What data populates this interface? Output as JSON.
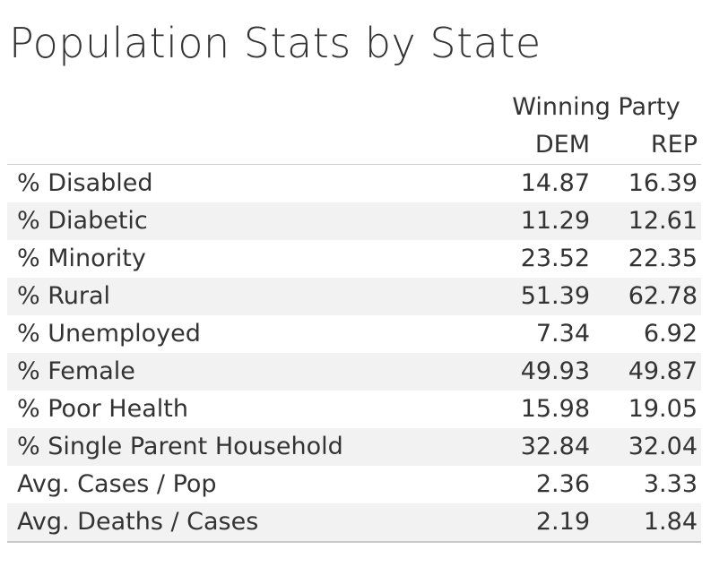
{
  "title": "Population Stats by State",
  "chart_data": {
    "type": "table",
    "title": "Population Stats by State",
    "column_group_label": "Winning Party",
    "columns": [
      "DEM",
      "REP"
    ],
    "rows": [
      {
        "label": "% Disabled",
        "values": [
          "14.87",
          "16.39"
        ]
      },
      {
        "label": "% Diabetic",
        "values": [
          "11.29",
          "12.61"
        ]
      },
      {
        "label": "% Minority",
        "values": [
          "23.52",
          "22.35"
        ]
      },
      {
        "label": "% Rural",
        "values": [
          "51.39",
          "62.78"
        ]
      },
      {
        "label": "% Unemployed",
        "values": [
          "7.34",
          "6.92"
        ]
      },
      {
        "label": "% Female",
        "values": [
          "49.93",
          "49.87"
        ]
      },
      {
        "label": "% Poor Health",
        "values": [
          "15.98",
          "19.05"
        ]
      },
      {
        "label": "% Single Parent Household",
        "values": [
          "32.84",
          "32.04"
        ]
      },
      {
        "label": "Avg. Cases / Pop",
        "values": [
          "2.36",
          "3.33"
        ]
      },
      {
        "label": "Avg. Deaths / Cases",
        "values": [
          "2.19",
          "1.84"
        ]
      }
    ]
  },
  "colors": {
    "text": "#333333",
    "band": "#f2f2f2",
    "rule": "#cccccc"
  }
}
